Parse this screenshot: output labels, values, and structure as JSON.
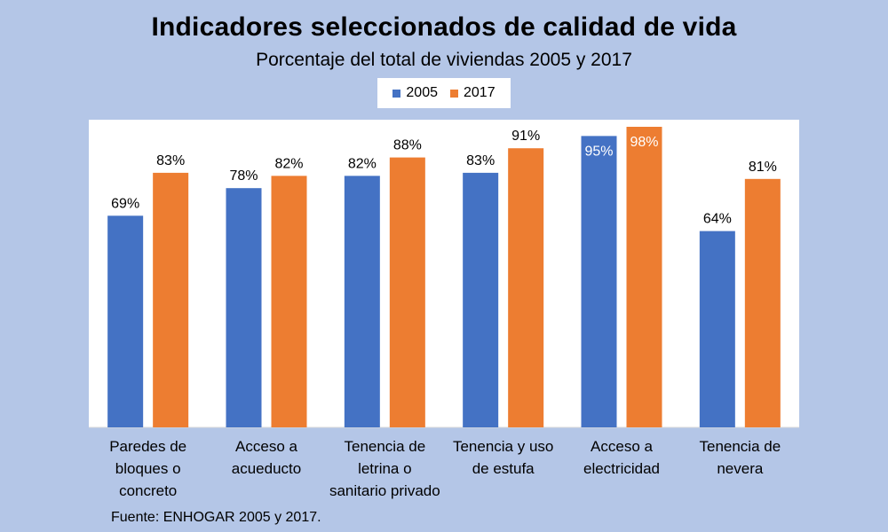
{
  "colors": {
    "background": "#b4c6e7",
    "plot_bg": "#ffffff",
    "series_2005": "#4472c4",
    "series_2017": "#ed7d31"
  },
  "source": "Fuente:  ENHOGAR  2005 y 2017.",
  "chart_data": {
    "type": "bar",
    "title": "Indicadores seleccionados de calidad de vida",
    "subtitle": "Porcentaje del total de viviendas  2005 y 2017",
    "categories": [
      [
        "Paredes de",
        "bloques o",
        "concreto"
      ],
      [
        "Acceso a",
        "acueducto"
      ],
      [
        "Tenencia de",
        "letrina o",
        "sanitario privado"
      ],
      [
        "Tenencia y uso",
        "de estufa"
      ],
      [
        "Acceso a",
        "electricidad"
      ],
      [
        "Tenencia de",
        "nevera"
      ]
    ],
    "series": [
      {
        "name": "2005",
        "color": "#4472c4",
        "values": [
          69,
          78,
          82,
          83,
          95,
          64
        ],
        "labels": [
          "69%",
          "78%",
          "82%",
          "83%",
          "95%",
          "64%"
        ]
      },
      {
        "name": "2017",
        "color": "#ed7d31",
        "values": [
          83,
          82,
          88,
          91,
          98,
          81
        ],
        "labels": [
          "83%",
          "82%",
          "88%",
          "91%",
          "98%",
          "81%"
        ]
      }
    ],
    "ylim": [
      0,
      100
    ],
    "grid": false,
    "legend": "top-center"
  }
}
